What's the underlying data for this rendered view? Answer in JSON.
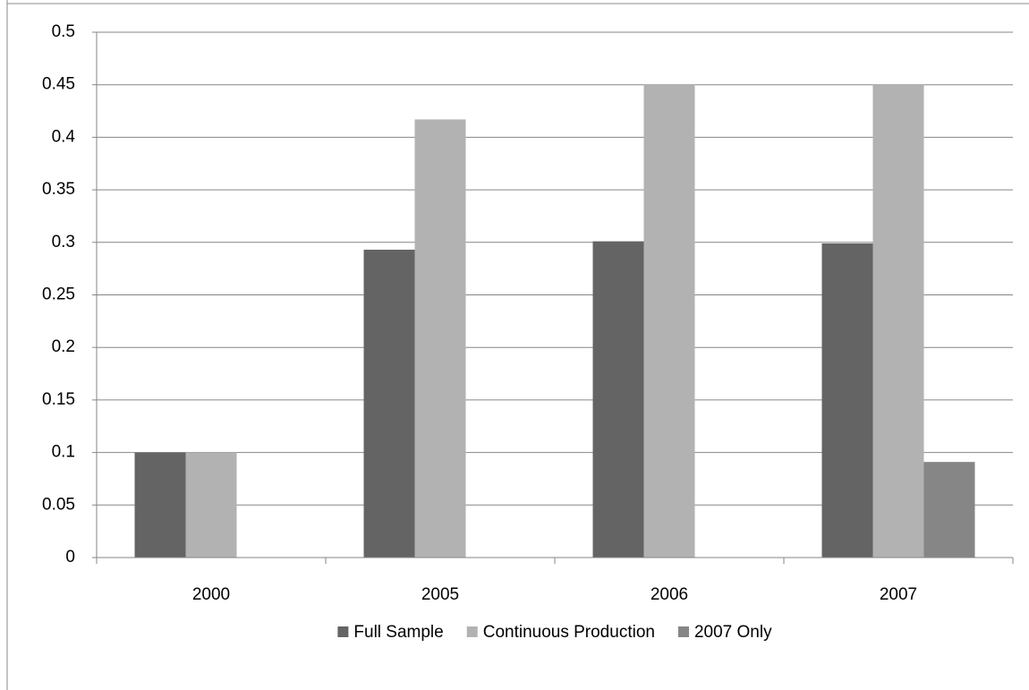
{
  "chart_data": {
    "type": "bar",
    "categories": [
      "2000",
      "2005",
      "2006",
      "2007"
    ],
    "series": [
      {
        "name": "Full Sample",
        "color": "#646464",
        "values": [
          0.1,
          0.293,
          0.301,
          0.299
        ]
      },
      {
        "name": "Continuous Production",
        "color": "#b2b2b2",
        "values": [
          0.1,
          0.417,
          0.45,
          0.45
        ]
      },
      {
        "name": "2007 Only",
        "color": "#868686",
        "values": [
          null,
          null,
          null,
          0.091
        ]
      }
    ],
    "ylim": [
      0,
      0.5
    ],
    "yticks": [
      0,
      0.05,
      0.1,
      0.15,
      0.2,
      0.25,
      0.3,
      0.35,
      0.4,
      0.45,
      0.5
    ],
    "grid": true,
    "legend": "bottom"
  }
}
